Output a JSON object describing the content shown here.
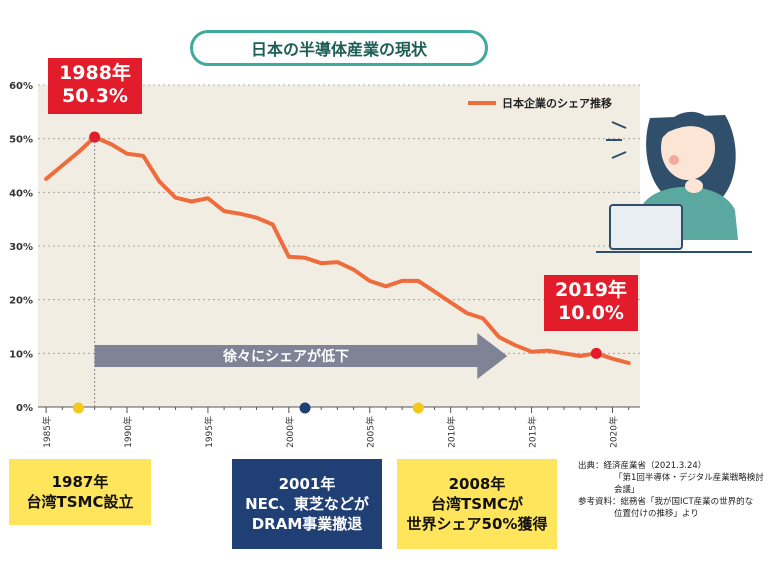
{
  "title": "日本の半導体産業の現状",
  "chart_data": {
    "type": "line",
    "series": [
      {
        "name": "日本企業のシェア推移",
        "color": "#ee6c3c",
        "points": [
          [
            1985,
            42.5
          ],
          [
            1986,
            45.0
          ],
          [
            1987,
            47.5
          ],
          [
            1988,
            50.3
          ],
          [
            1989,
            49.0
          ],
          [
            1990,
            47.2
          ],
          [
            1991,
            46.8
          ],
          [
            1992,
            42.0
          ],
          [
            1993,
            39.0
          ],
          [
            1994,
            38.3
          ],
          [
            1995,
            38.9
          ],
          [
            1996,
            36.5
          ],
          [
            1997,
            36.0
          ],
          [
            1998,
            35.3
          ],
          [
            1999,
            34.0
          ],
          [
            2000,
            28.0
          ],
          [
            2001,
            27.8
          ],
          [
            2002,
            26.8
          ],
          [
            2003,
            27.0
          ],
          [
            2004,
            25.6
          ],
          [
            2005,
            23.5
          ],
          [
            2006,
            22.5
          ],
          [
            2007,
            23.5
          ],
          [
            2008,
            23.5
          ],
          [
            2009,
            21.5
          ],
          [
            2010,
            19.5
          ],
          [
            2011,
            17.5
          ],
          [
            2012,
            16.5
          ],
          [
            2013,
            13.0
          ],
          [
            2014,
            11.5
          ],
          [
            2015,
            10.3
          ],
          [
            2016,
            10.5
          ],
          [
            2017,
            10.0
          ],
          [
            2018,
            9.5
          ],
          [
            2019,
            10.0
          ],
          [
            2020,
            9.0
          ],
          [
            2021,
            8.2
          ]
        ]
      }
    ],
    "xlim": [
      1984.5,
      2021.7
    ],
    "ylim": [
      0,
      60
    ],
    "yticks": [
      "0%",
      "10%",
      "20%",
      "30%",
      "40%",
      "50%",
      "60%"
    ],
    "xticks": [
      "1985年",
      "1990年",
      "1995年",
      "2000年",
      "2005年",
      "2010年",
      "2015年",
      "2020年"
    ],
    "grid": true,
    "legend_position": "top-right",
    "background": "#f2ede3",
    "highlights": [
      {
        "x": 1988,
        "y": 50.3,
        "year": "1988年",
        "value": "50.3%"
      },
      {
        "x": 2019,
        "y": 10.0,
        "year": "2019年",
        "value": "10.0%"
      }
    ],
    "trend_arrow": "徐々にシェアが低下",
    "events": [
      {
        "x": 1987,
        "color": "#f4c81a",
        "lines": [
          "1987年",
          "台湾TSMC設立"
        ]
      },
      {
        "x": 2001,
        "color": "#1f3f75",
        "lines": [
          "2001年",
          "NEC、東芝などが",
          "DRAM事業撤退"
        ]
      },
      {
        "x": 2008,
        "color": "#f4c81a",
        "lines": [
          "2008年",
          "台湾TSMCが",
          "世界シェア50%獲得"
        ]
      }
    ]
  },
  "source": {
    "line1": "出典：経済産業省（2021.3.24）",
    "line2": "「第1回半導体・デジタル産業戦略検討会議」",
    "line3": "参考資料：総務省「我が国ICT産業の世界的な",
    "line4": "位置付けの推移」より"
  }
}
